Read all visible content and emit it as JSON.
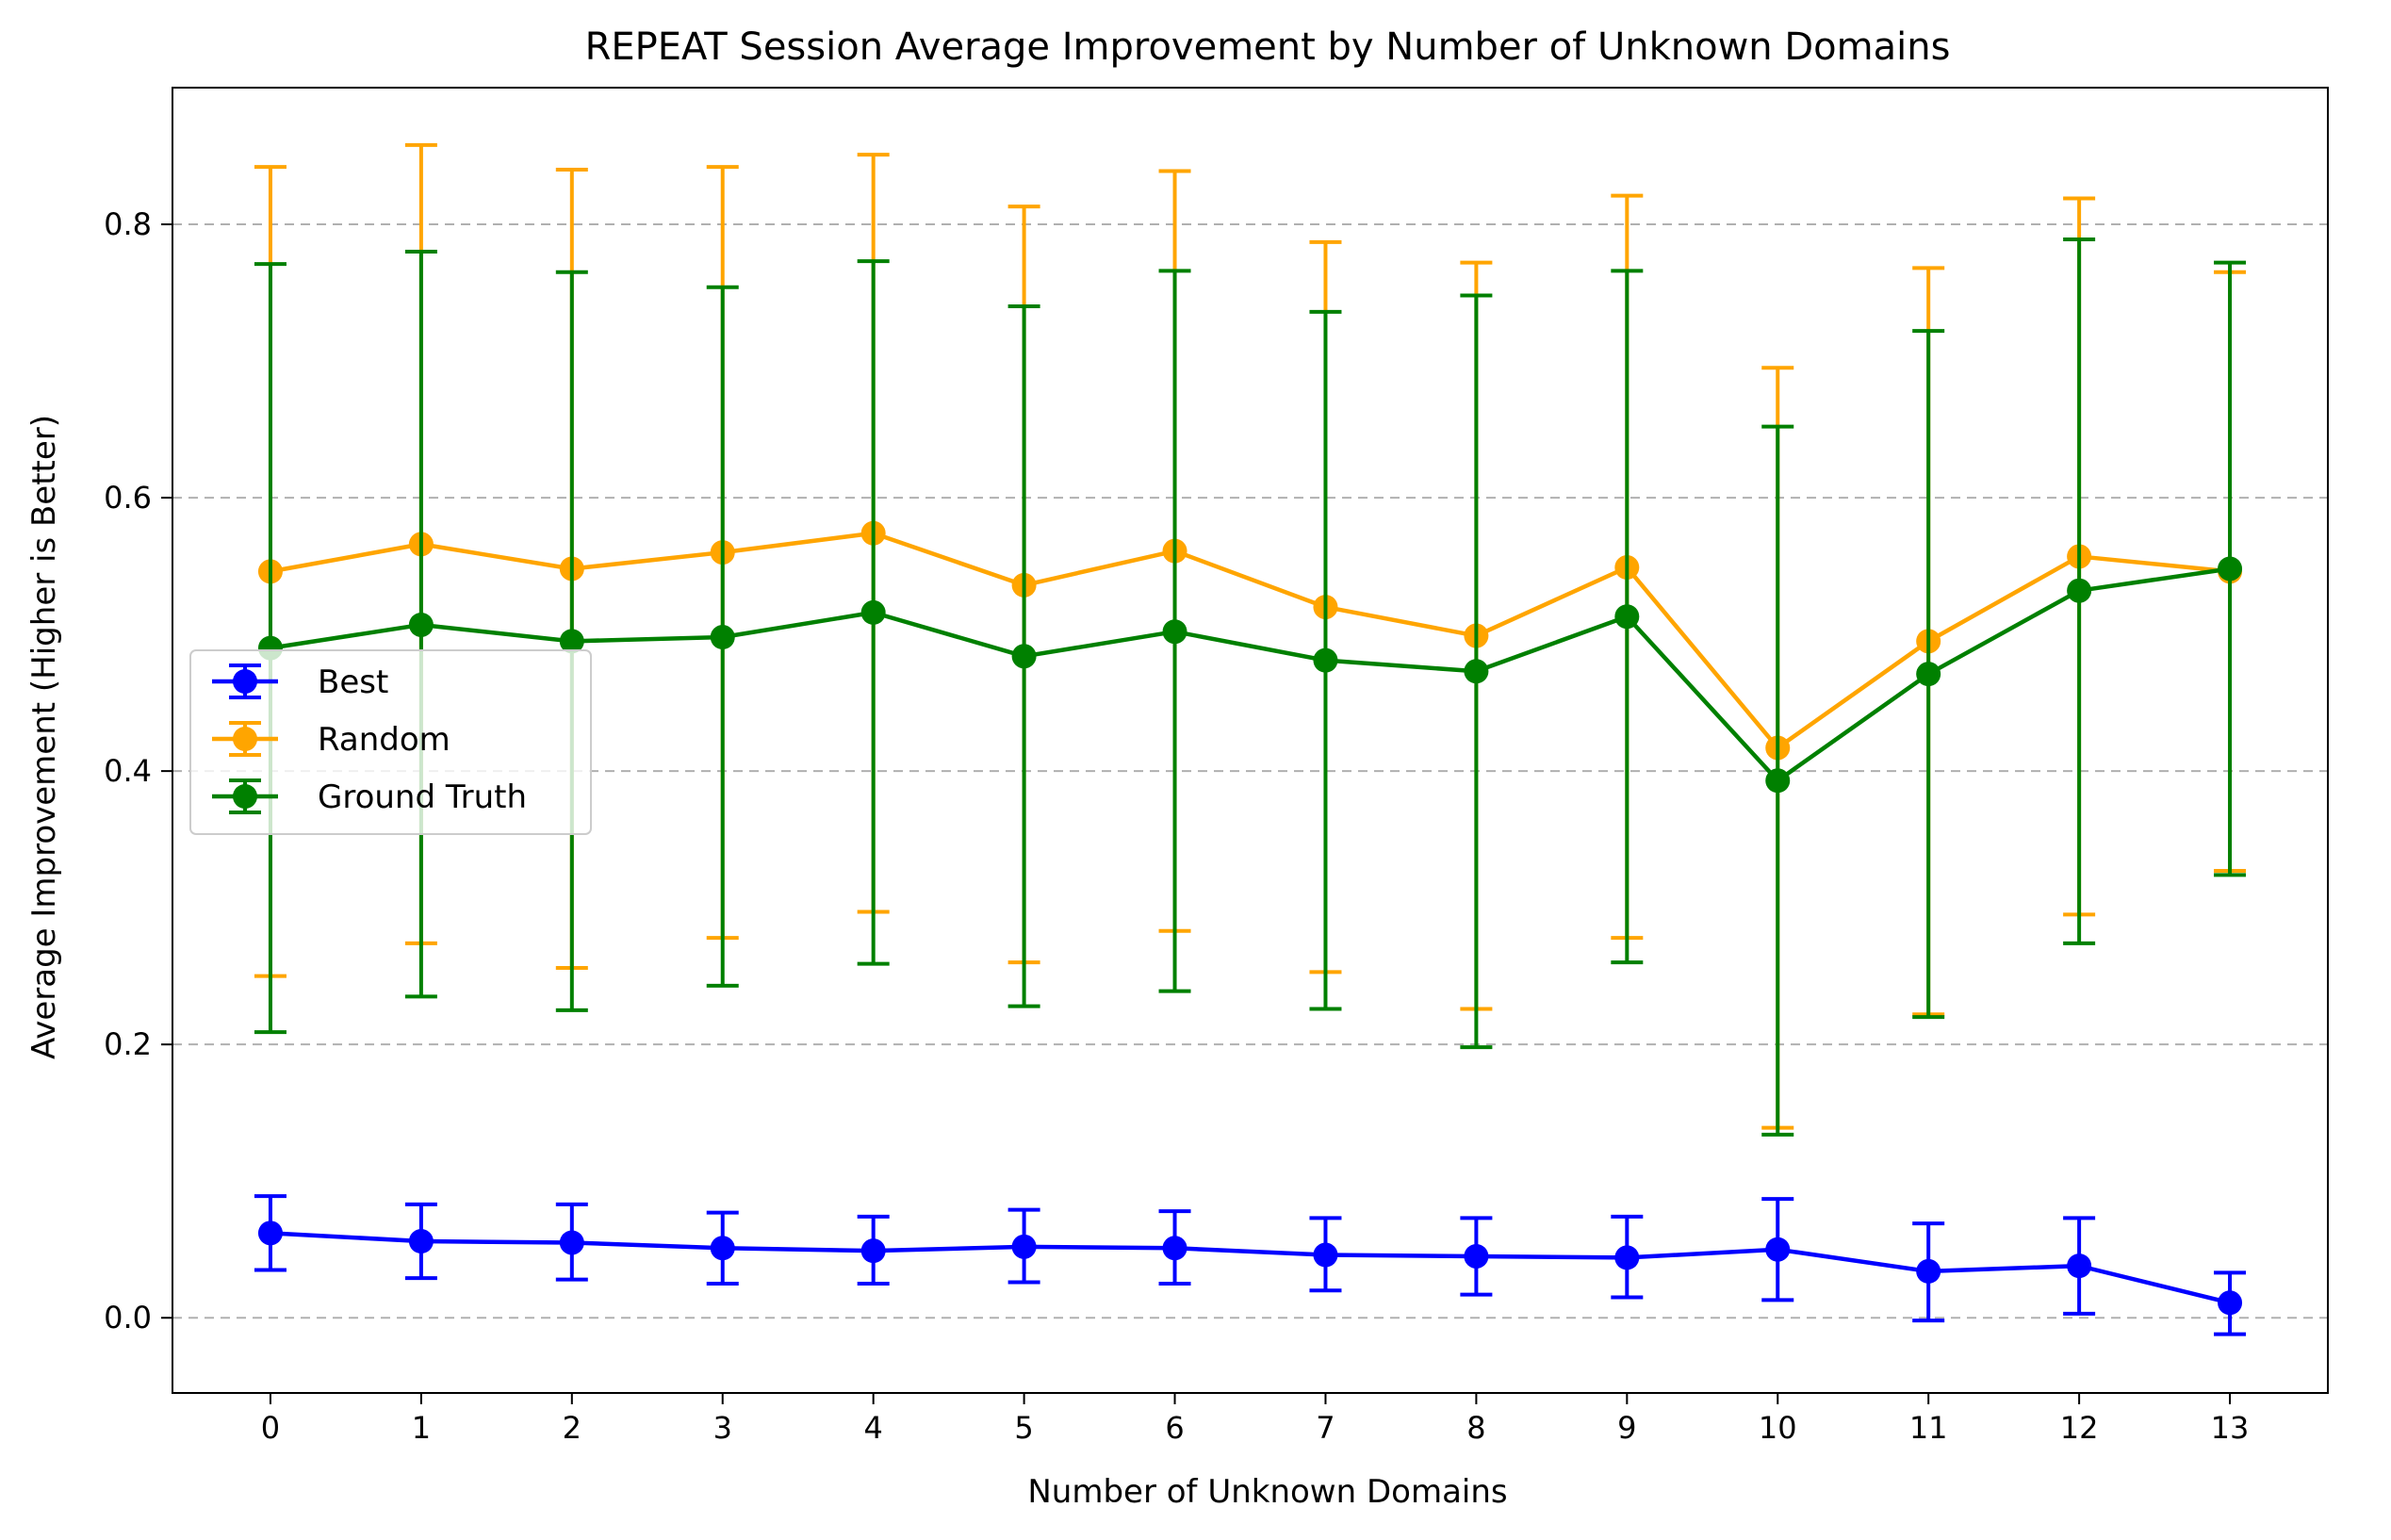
{
  "chart_data": {
    "type": "line",
    "title": "REPEAT Session Average Improvement by Number of Unknown Domains",
    "xlabel": "Number of Unknown Domains",
    "ylabel": "Average Improvement (Higher is Better)",
    "x": [
      0,
      1,
      2,
      3,
      4,
      5,
      6,
      7,
      8,
      9,
      10,
      11,
      12,
      13
    ],
    "xlim": [
      -0.65,
      13.65
    ],
    "ylim": [
      -0.055,
      0.9
    ],
    "yticks": [
      0.0,
      0.2,
      0.4,
      0.6,
      0.8
    ],
    "ytick_labels": [
      "0.0",
      "0.2",
      "0.4",
      "0.6",
      "0.8"
    ],
    "xtick_labels": [
      "0",
      "1",
      "2",
      "3",
      "4",
      "5",
      "6",
      "7",
      "8",
      "9",
      "10",
      "11",
      "12",
      "13"
    ],
    "grid": "horizontal dashed",
    "legend_position": "center-left",
    "series": [
      {
        "name": "Best",
        "color": "#0000ff",
        "values": [
          0.062,
          0.056,
          0.055,
          0.051,
          0.049,
          0.052,
          0.051,
          0.046,
          0.045,
          0.044,
          0.05,
          0.034,
          0.038,
          0.011
        ],
        "err_low": [
          0.035,
          0.029,
          0.028,
          0.025,
          0.025,
          0.026,
          0.025,
          0.02,
          0.017,
          0.015,
          0.013,
          -0.002,
          0.003,
          -0.012
        ],
        "err_high": [
          0.089,
          0.083,
          0.083,
          0.077,
          0.074,
          0.079,
          0.078,
          0.073,
          0.073,
          0.074,
          0.087,
          0.069,
          0.073,
          0.033
        ]
      },
      {
        "name": "Random",
        "color": "#ffa500",
        "values": [
          0.546,
          0.566,
          0.548,
          0.56,
          0.574,
          0.536,
          0.561,
          0.52,
          0.499,
          0.549,
          0.417,
          0.495,
          0.557,
          0.546
        ],
        "err_low": [
          0.25,
          0.274,
          0.256,
          0.278,
          0.297,
          0.26,
          0.283,
          0.253,
          0.226,
          0.278,
          0.139,
          0.222,
          0.295,
          0.327
        ],
        "err_high": [
          0.842,
          0.858,
          0.84,
          0.842,
          0.851,
          0.813,
          0.839,
          0.787,
          0.772,
          0.821,
          0.695,
          0.768,
          0.819,
          0.765
        ]
      },
      {
        "name": "Ground Truth",
        "color": "#008000",
        "values": [
          0.49,
          0.507,
          0.495,
          0.498,
          0.516,
          0.484,
          0.502,
          0.481,
          0.473,
          0.513,
          0.393,
          0.471,
          0.532,
          0.548
        ],
        "err_low": [
          0.209,
          0.235,
          0.225,
          0.243,
          0.259,
          0.228,
          0.239,
          0.226,
          0.198,
          0.26,
          0.134,
          0.22,
          0.274,
          0.324
        ],
        "err_high": [
          0.771,
          0.78,
          0.765,
          0.754,
          0.773,
          0.74,
          0.766,
          0.736,
          0.748,
          0.766,
          0.652,
          0.722,
          0.789,
          0.772
        ]
      }
    ]
  }
}
